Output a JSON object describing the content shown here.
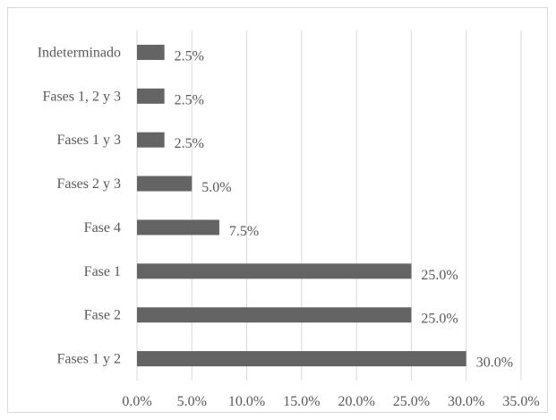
{
  "chart_data": {
    "type": "bar",
    "orientation": "horizontal",
    "title": "",
    "xlabel": "",
    "ylabel": "",
    "categories": [
      "Indeterminado",
      "Fases 1, 2 y 3",
      "Fases 1 y 3",
      "Fases 2 y 3",
      "Fase 4",
      "Fase 1",
      "Fase 2",
      "Fases 1 y 2"
    ],
    "values": [
      2.5,
      2.5,
      2.5,
      5.0,
      7.5,
      25.0,
      25.0,
      30.0
    ],
    "data_labels": [
      "2.5%",
      "2.5%",
      "2.5%",
      "5.0%",
      "7.5%",
      "25.0%",
      "25.0%",
      "30.0%"
    ],
    "xlim": [
      0,
      35
    ],
    "x_ticks": [
      0,
      5,
      10,
      15,
      20,
      25,
      30,
      35
    ],
    "x_tick_labels": [
      "0.0%",
      "5.0%",
      "10.0%",
      "15.0%",
      "20.0%",
      "25.0%",
      "30.0%",
      "35.0%"
    ],
    "grid": "vertical",
    "legend": "none",
    "bar_color": "#646464",
    "grid_color": "#d9d9d9",
    "text_color": "#595959"
  }
}
